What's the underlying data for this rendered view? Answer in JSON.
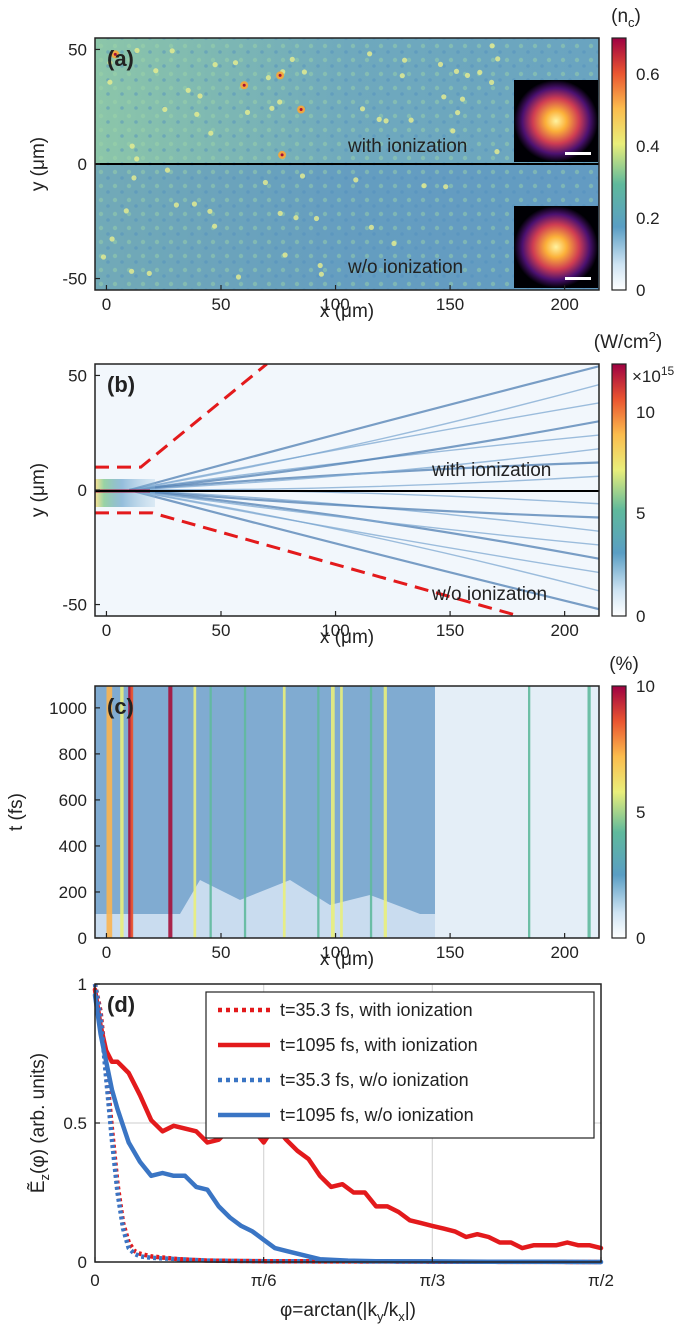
{
  "chart_data": [
    {
      "panel": "(a)",
      "type": "heatmap",
      "xlabel": "x (μm)",
      "ylabel": "y (μm)",
      "xticks": [
        "0",
        "50",
        "100",
        "150",
        "200"
      ],
      "yticks": [
        "50",
        "0",
        "-50"
      ],
      "xlim": [
        -5,
        215
      ],
      "ylim": [
        -55,
        55
      ],
      "colorbar": {
        "label": "(n",
        "label_sub": "c",
        "label_end": ")",
        "ticks": [
          "0.6",
          "0.4",
          "0.2",
          "0"
        ],
        "range": [
          0,
          0.7
        ]
      },
      "annotations": [
        "with ionization",
        "w/o ionization"
      ],
      "colors": {
        "low": "#e8f2fb",
        "mid": "#6fb5a8",
        "high": "#f7e44a",
        "peak": "#a50f38"
      }
    },
    {
      "panel": "(b)",
      "type": "heatmap",
      "xlabel": "x (μm)",
      "ylabel": "y (μm)",
      "xticks": [
        "0",
        "50",
        "100",
        "150",
        "200"
      ],
      "yticks": [
        "50",
        "0",
        "-50"
      ],
      "xlim": [
        -5,
        215
      ],
      "ylim": [
        -55,
        55
      ],
      "colorbar": {
        "label": "(W/cm",
        "label_sup": "2",
        "label_end": ")",
        "multiplier": "×10",
        "multiplier_exp": "15",
        "ticks": [
          "10",
          "5",
          "0"
        ],
        "range": [
          0,
          12
        ]
      },
      "annotations": [
        "with ionization",
        "w/o ionization"
      ],
      "dashed_lines": {
        "color": "#e31a1c",
        "upper": [
          [
            -5,
            10
          ],
          [
            15,
            10
          ],
          [
            70,
            55
          ]
        ],
        "lower": [
          [
            -5,
            -10
          ],
          [
            20,
            -10
          ],
          [
            180,
            -55
          ]
        ]
      }
    },
    {
      "panel": "(c)",
      "type": "heatmap",
      "xlabel": "x (μm)",
      "ylabel": "t (fs)",
      "xticks": [
        "0",
        "50",
        "100",
        "150",
        "200"
      ],
      "yticks": [
        "1000",
        "800",
        "600",
        "400",
        "200",
        "0"
      ],
      "xlim": [
        -5,
        215
      ],
      "ylim": [
        0,
        1095
      ],
      "colorbar": {
        "label": "(%)",
        "ticks": [
          "10",
          "5",
          "0"
        ],
        "range": [
          0,
          10
        ]
      }
    },
    {
      "panel": "(d)",
      "type": "line",
      "xlabel": "φ=arctan(|k",
      "xlabel_sub1": "y",
      "xlabel_mid": "/k",
      "xlabel_sub2": "x",
      "xlabel_end": "|)",
      "ylabel": "Ẽ",
      "ylabel_sub": "z",
      "ylabel_end": "(φ) (arb. units)",
      "xticks": [
        "0",
        "π/6",
        "π/3",
        "π/2"
      ],
      "yticks": [
        "1",
        "0.5",
        "0"
      ],
      "xlim": [
        0,
        90
      ],
      "ylim": [
        0,
        1
      ],
      "x_unit": "degrees of φ",
      "series": [
        {
          "name": "t=35.3 fs, with ionization",
          "color": "#e31a1c",
          "style": "dotted",
          "x": [
            0,
            1,
            2,
            3,
            4,
            5,
            6,
            7,
            8,
            10,
            15,
            20,
            30,
            45,
            60,
            90
          ],
          "y": [
            1.0,
            0.9,
            0.7,
            0.48,
            0.28,
            0.14,
            0.07,
            0.04,
            0.03,
            0.02,
            0.01,
            0.005,
            0.003,
            0.002,
            0.001,
            0.0
          ]
        },
        {
          "name": "t=1095 fs, with ionization",
          "color": "#e31a1c",
          "style": "solid",
          "x": [
            0,
            1,
            2,
            3,
            4,
            5,
            6,
            8,
            10,
            12,
            14,
            16,
            18,
            20,
            22,
            24,
            26,
            28,
            30,
            32,
            34,
            36,
            38,
            40,
            42,
            44,
            46,
            48,
            50,
            52,
            54,
            56,
            58,
            60,
            62,
            64,
            66,
            68,
            70,
            72,
            74,
            76,
            78,
            80,
            82,
            84,
            86,
            88,
            90
          ],
          "y": [
            0.98,
            0.85,
            0.76,
            0.72,
            0.72,
            0.7,
            0.68,
            0.6,
            0.51,
            0.47,
            0.49,
            0.48,
            0.47,
            0.43,
            0.44,
            0.48,
            0.46,
            0.48,
            0.43,
            0.49,
            0.44,
            0.4,
            0.37,
            0.31,
            0.27,
            0.28,
            0.25,
            0.25,
            0.2,
            0.2,
            0.18,
            0.15,
            0.14,
            0.13,
            0.12,
            0.11,
            0.09,
            0.1,
            0.09,
            0.07,
            0.07,
            0.05,
            0.06,
            0.06,
            0.06,
            0.07,
            0.06,
            0.06,
            0.05
          ]
        },
        {
          "name": "t=35.3 fs, w/o ionization",
          "color": "#3a75c4",
          "style": "dotted",
          "x": [
            0,
            1,
            2,
            3,
            4,
            5,
            6,
            7,
            8,
            10,
            15,
            20,
            30,
            45,
            60,
            90
          ],
          "y": [
            1.0,
            0.88,
            0.66,
            0.44,
            0.25,
            0.12,
            0.05,
            0.03,
            0.02,
            0.015,
            0.01,
            0.005,
            0.003,
            0.002,
            0.001,
            0.0
          ]
        },
        {
          "name": "t=1095 fs, w/o ionization",
          "color": "#3a75c4",
          "style": "solid",
          "x": [
            0,
            1,
            2,
            3,
            4,
            5,
            6,
            8,
            10,
            12,
            14,
            16,
            18,
            20,
            22,
            24,
            26,
            28,
            30,
            32,
            34,
            36,
            38,
            40,
            45,
            50,
            60,
            70,
            80,
            90
          ],
          "y": [
            0.96,
            0.82,
            0.72,
            0.62,
            0.55,
            0.49,
            0.43,
            0.36,
            0.31,
            0.32,
            0.31,
            0.31,
            0.27,
            0.26,
            0.2,
            0.16,
            0.13,
            0.11,
            0.08,
            0.05,
            0.04,
            0.03,
            0.02,
            0.01,
            0.005,
            0.003,
            0.002,
            0.001,
            0.001,
            0.0
          ]
        }
      ],
      "grid": true,
      "legend_position": "top-right"
    }
  ]
}
